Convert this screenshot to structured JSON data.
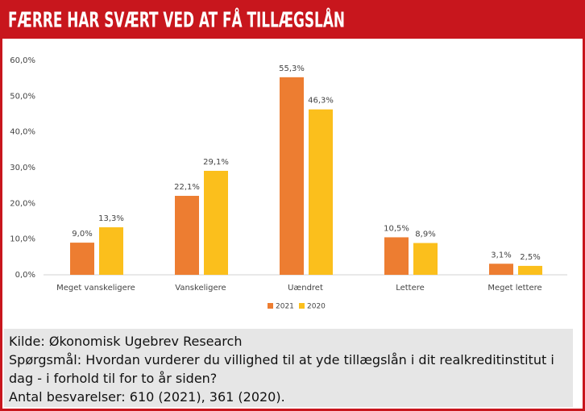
{
  "chart_data": {
    "type": "bar",
    "title": "FÆRRE HAR SVÆRT VED AT FÅ TILLÆGSLÅN",
    "categories": [
      "Meget vanskeligere",
      "Vanskeligere",
      "Uændret",
      "Lettere",
      "Meget lettere"
    ],
    "series": [
      {
        "name": "2021",
        "color": "#ed7d31",
        "values": [
          9.0,
          22.1,
          55.3,
          10.5,
          3.1
        ],
        "value_labels": [
          "9,0%",
          "22,1%",
          "55,3%",
          "10,5%",
          "3,1%"
        ]
      },
      {
        "name": "2020",
        "color": "#fbbf1c",
        "values": [
          13.3,
          29.1,
          46.3,
          8.9,
          2.5
        ],
        "value_labels": [
          "13,3%",
          "29,1%",
          "46,3%",
          "8,9%",
          "2,5%"
        ]
      }
    ],
    "ylim": [
      0,
      60
    ],
    "yticks": [
      {
        "value": 0,
        "label": "0,0%"
      },
      {
        "value": 10,
        "label": "10,0%"
      },
      {
        "value": 20,
        "label": "20,0%"
      },
      {
        "value": 30,
        "label": "30,0%"
      },
      {
        "value": 40,
        "label": "40,0%"
      },
      {
        "value": 50,
        "label": "50,0%"
      },
      {
        "value": 60,
        "label": "60,0%"
      }
    ],
    "grid": false,
    "legend": "bottom"
  },
  "footer": {
    "source": "Kilde: Økonomisk Ugebrev Research",
    "question": "Spørgsmål: Hvordan vurderer du villighed til at yde tillægslån i dit realkreditinstitut i dag - i forhold til for to år siden?",
    "responses": "Antal besvarelser: 610 (2021), 361 (2020)."
  }
}
